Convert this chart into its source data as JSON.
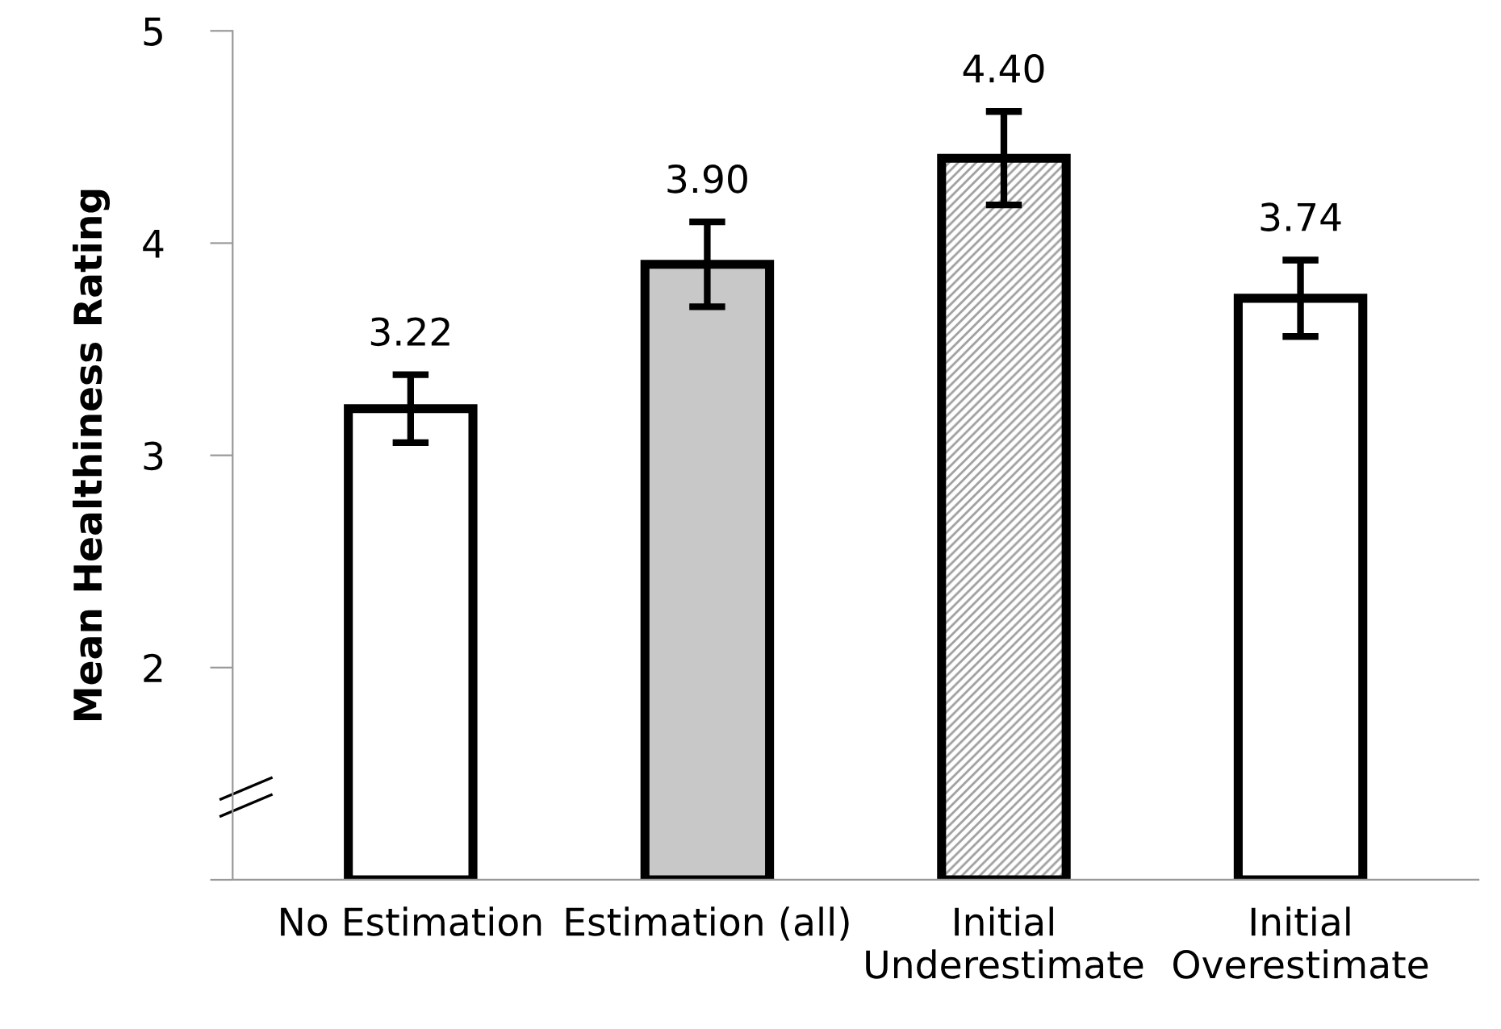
{
  "chart_data": {
    "type": "bar",
    "ylabel": "Mean Healthiness Rating",
    "categories": [
      "No Estimation",
      "Estimation (all)",
      "Initial\nUnderestimate",
      "Initial\nOverestimate"
    ],
    "values": [
      3.22,
      3.9,
      4.4,
      3.74
    ],
    "errors": [
      0.16,
      0.2,
      0.22,
      0.18
    ],
    "value_labels": [
      "3.22",
      "3.90",
      "4.40",
      "3.74"
    ],
    "colors": [
      "#ffffff",
      "#c8c8c8",
      "#a0a0a0",
      "#ffffff"
    ],
    "ylim": [
      1,
      5
    ],
    "yticks": [
      {
        "value": 1,
        "label": null
      },
      2,
      3,
      4,
      5
    ],
    "grid": false,
    "legend": false
  }
}
